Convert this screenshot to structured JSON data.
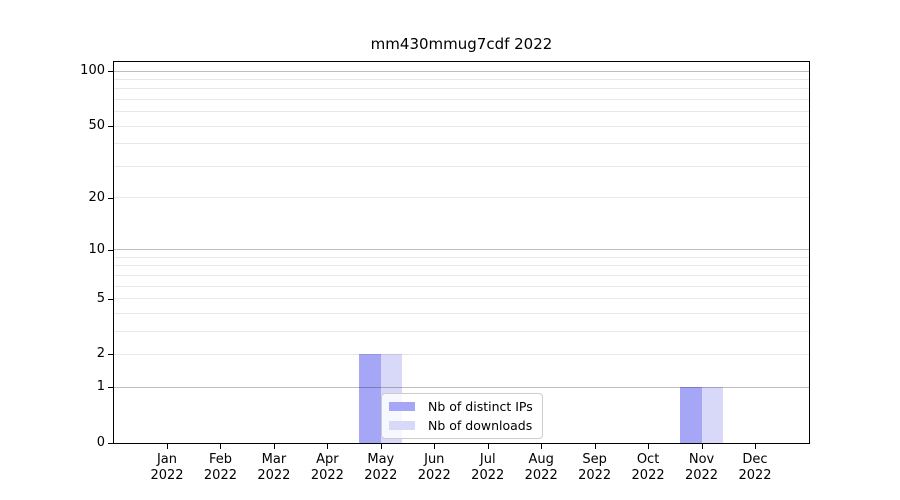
{
  "chart_data": {
    "type": "bar",
    "title": "mm430mmug7cdf 2022",
    "x_categories": [
      "Jan",
      "Feb",
      "Mar",
      "Apr",
      "May",
      "Jun",
      "Jul",
      "Aug",
      "Sep",
      "Oct",
      "Nov",
      "Dec"
    ],
    "x_category_sublabel": "2022",
    "series": [
      {
        "name": "Nb of distinct IPs",
        "color": "#a6a6f7",
        "values": [
          0,
          0,
          0,
          0,
          2,
          0,
          0,
          0,
          0,
          0,
          1,
          0
        ]
      },
      {
        "name": "Nb of downloads",
        "color": "#d8d8f8",
        "values": [
          0,
          0,
          0,
          0,
          2,
          0,
          0,
          0,
          0,
          0,
          1,
          0
        ]
      }
    ],
    "y_axis": {
      "scale": "log10(value+1)",
      "ylim": [
        0,
        100
      ],
      "tick_values": [
        0,
        1,
        2,
        5,
        10,
        20,
        50,
        100
      ],
      "major_gridlines": [
        1,
        10,
        100
      ],
      "minor_gridlines": [
        2,
        3,
        4,
        5,
        6,
        7,
        8,
        9,
        20,
        30,
        40,
        50,
        60,
        70,
        80,
        90
      ]
    },
    "legend": {
      "position": "lower center"
    },
    "colors": {
      "spine": "#000000",
      "background": "#ffffff",
      "minor_grid": "rgba(0,0,0,0.09)",
      "major_grid": "rgba(0,0,0,0.25)"
    },
    "grid": "on"
  }
}
